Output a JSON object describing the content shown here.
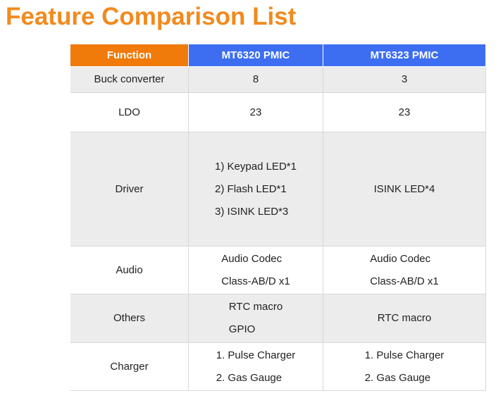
{
  "header": {
    "title": "Feature Comparison List"
  },
  "table": {
    "columns": [
      "Function",
      "MT6320 PMIC",
      "MT6323 PMIC"
    ],
    "rows": [
      [
        [
          "Buck converter"
        ],
        [
          8
        ],
        [
          3
        ]
      ],
      [
        [
          "LDO"
        ],
        [
          23
        ],
        [
          23
        ]
      ],
      [
        [
          "Driver"
        ],
        [
          "1) Keypad LED*1",
          "2) Flash LED*1",
          "3) ISINK LED*3"
        ],
        [
          "ISINK LED*4"
        ]
      ],
      [
        [
          "Audio"
        ],
        [
          "Audio Codec",
          "Class-AB/D x1"
        ],
        [
          "Audio Codec",
          "Class-AB/D x1"
        ]
      ],
      [
        [
          "Others"
        ],
        [
          "RTC macro",
          "GPIO"
        ],
        [
          "RTC macro"
        ]
      ],
      [
        [
          "Charger"
        ],
        [
          "1. Pulse Charger",
          "2. Gas Gauge"
        ],
        [
          "1. Pulse Charger",
          "2. Gas Gauge"
        ]
      ]
    ]
  }
}
